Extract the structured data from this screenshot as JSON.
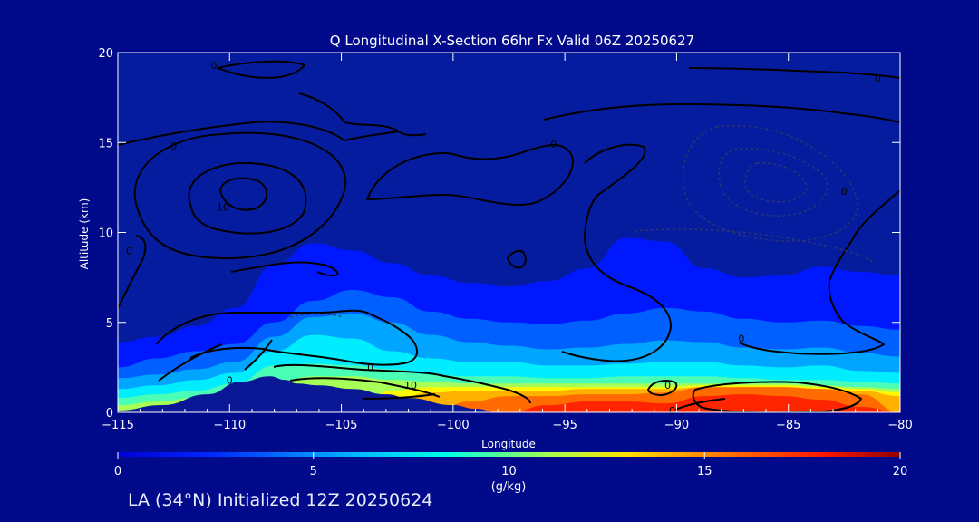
{
  "chart_data": {
    "type": "heatmap",
    "title": "Q Longitudinal X-Section 66hr  Fx Valid 06Z 20250627",
    "xlabel": "Longitude",
    "ylabel": "Altitude (km)",
    "xlim": [
      -115,
      -80
    ],
    "ylim": [
      0,
      20
    ],
    "x_ticks": [
      -115,
      -110,
      -105,
      -100,
      -95,
      -90,
      -85,
      -80
    ],
    "x_tick_labels": [
      "−115",
      "−110",
      "−105",
      "−100",
      "−95",
      "−90",
      "−85",
      "−80"
    ],
    "y_ticks": [
      0,
      5,
      10,
      15,
      20
    ],
    "y_tick_labels": [
      "0",
      "5",
      "10",
      "15",
      "20"
    ],
    "colorbar": {
      "label": "(g/kg)",
      "range": [
        0,
        20
      ],
      "ticks": [
        0,
        5,
        10,
        15,
        20
      ],
      "tick_labels": [
        "0",
        "5",
        "10",
        "15",
        "20"
      ],
      "colormap": "jet"
    },
    "contour_labels": [
      {
        "text": "0",
        "x": -110.7,
        "y": 19.3
      },
      {
        "text": "0",
        "x": -112.5,
        "y": 14.8
      },
      {
        "text": "0",
        "x": -95.5,
        "y": 14.9
      },
      {
        "text": "0",
        "x": -81,
        "y": 18.6
      },
      {
        "text": "10",
        "x": -110.3,
        "y": 11.4
      },
      {
        "text": "0",
        "x": -114.5,
        "y": 9.0
      },
      {
        "text": "0",
        "x": -82.5,
        "y": 12.3
      },
      {
        "text": "0",
        "x": -110,
        "y": 1.8
      },
      {
        "text": "0",
        "x": -103.7,
        "y": 2.5
      },
      {
        "text": "10",
        "x": -101.9,
        "y": 1.5
      },
      {
        "text": "0",
        "x": -90.4,
        "y": 1.5
      },
      {
        "text": "0",
        "x": -90.2,
        "y": 0.1
      },
      {
        "text": "0",
        "x": -87.1,
        "y": 4.1
      }
    ],
    "moisture_layers_g_per_kg": [
      {
        "level": 1.5,
        "top_km": [
          3.9,
          4.2,
          4.8,
          5.8,
          8.2,
          9.4,
          9.0,
          8.3,
          7.6,
          7.2,
          7.0,
          7.3,
          8.0,
          9.7,
          9.5,
          8.0,
          7.5,
          7.6,
          8.1,
          7.8,
          7.6
        ]
      },
      {
        "level": 3,
        "top_km": [
          2.5,
          3.0,
          3.4,
          3.8,
          5.0,
          6.2,
          6.8,
          6.4,
          5.6,
          5.2,
          5.0,
          4.9,
          5.1,
          5.5,
          5.8,
          5.6,
          5.2,
          5.0,
          5.1,
          4.8,
          4.6
        ]
      },
      {
        "level": 4.5,
        "top_km": [
          1.9,
          2.1,
          2.4,
          2.8,
          4.2,
          5.3,
          5.5,
          5.0,
          4.3,
          3.9,
          3.7,
          3.5,
          3.6,
          3.8,
          4.0,
          3.9,
          3.6,
          3.5,
          3.6,
          3.3,
          3.1
        ]
      },
      {
        "level": 6,
        "top_km": [
          1.3,
          1.5,
          1.8,
          2.2,
          3.4,
          4.3,
          4.1,
          3.4,
          3.0,
          2.8,
          2.8,
          2.6,
          2.6,
          2.7,
          2.8,
          2.8,
          2.6,
          2.5,
          2.6,
          2.3,
          2.2
        ]
      },
      {
        "level": 8,
        "top_km": [
          0.8,
          1.0,
          1.2,
          1.6,
          2.6,
          2.7,
          2.6,
          2.4,
          2.1,
          2.0,
          2.0,
          1.9,
          1.9,
          2.0,
          2.0,
          2.0,
          1.9,
          1.8,
          1.8,
          1.7,
          1.6
        ]
      },
      {
        "level": 10,
        "top_km": [
          0.4,
          0.6,
          0.8,
          1.0,
          1.6,
          2.0,
          2.0,
          1.8,
          1.7,
          1.6,
          1.6,
          1.6,
          1.6,
          1.6,
          1.6,
          1.6,
          1.6,
          1.6,
          1.5,
          1.4,
          1.3
        ]
      },
      {
        "level": 12,
        "top_km": [
          0.0,
          0.0,
          0.0,
          0.0,
          0.0,
          0.0,
          0.0,
          1.2,
          1.4,
          1.4,
          1.4,
          1.4,
          1.4,
          1.4,
          1.4,
          1.5,
          1.5,
          1.5,
          1.4,
          1.3,
          1.1
        ]
      },
      {
        "level": 13.5,
        "top_km": [
          0.0,
          0.0,
          0.0,
          0.0,
          0.0,
          0.0,
          0.0,
          0.6,
          1.1,
          1.2,
          1.2,
          1.2,
          1.3,
          1.3,
          1.3,
          1.4,
          1.4,
          1.4,
          1.3,
          1.2,
          0.9
        ]
      },
      {
        "level": 15,
        "top_km": [
          0.0,
          0.0,
          0.0,
          0.0,
          0.0,
          0.0,
          0.0,
          0.0,
          0.0,
          0.6,
          0.9,
          0.9,
          1.0,
          1.0,
          1.1,
          1.4,
          1.4,
          1.4,
          1.3,
          1.0,
          0.0
        ]
      },
      {
        "level": 16.5,
        "top_km": [
          0.0,
          0.0,
          0.0,
          0.0,
          0.0,
          0.0,
          0.0,
          0.0,
          0.0,
          0.0,
          0.0,
          0.4,
          0.6,
          0.6,
          0.5,
          0.9,
          1.0,
          0.9,
          0.7,
          0.3,
          0.0
        ]
      }
    ],
    "moisture_layer_x": [
      -115,
      -113.25,
      -111.5,
      -109.75,
      -108,
      -106.25,
      -104.5,
      -102.75,
      -101,
      -99.25,
      -97.5,
      -95.75,
      -94,
      -92.25,
      -90.5,
      -88.75,
      -87,
      -85.25,
      -83.5,
      -81.75,
      -80
    ],
    "terrain_km": {
      "x": [
        -115,
        -113,
        -111,
        -109.5,
        -108.2,
        -107.5,
        -107,
        -106,
        -104.5,
        -103,
        -102,
        -100,
        -99,
        -98
      ],
      "y": [
        0.1,
        0.4,
        1.0,
        1.7,
        2.0,
        1.8,
        1.6,
        1.5,
        1.3,
        1.0,
        0.8,
        0.4,
        0.2,
        0.0
      ]
    }
  },
  "footer": "LA (34°N) Initialized 12Z 20250624"
}
